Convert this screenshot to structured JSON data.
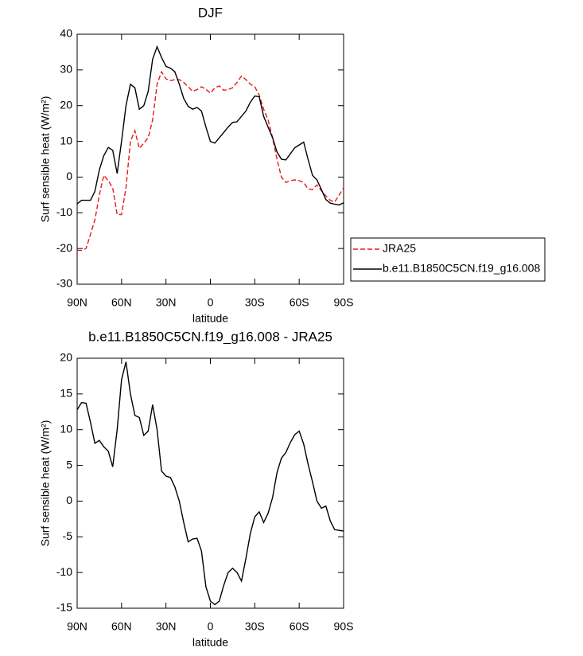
{
  "chart_data": [
    {
      "type": "line",
      "title": "DJF",
      "xlabel": "latitude",
      "ylabel": "Surf sensible heat (W/m²)",
      "x": [
        90,
        87,
        84,
        81,
        78,
        75,
        72,
        69,
        66,
        63,
        60,
        57,
        54,
        51,
        48,
        45,
        42,
        39,
        36,
        33,
        30,
        27,
        24,
        21,
        18,
        15,
        12,
        9,
        6,
        3,
        0,
        -3,
        -6,
        -9,
        -12,
        -15,
        -18,
        -21,
        -24,
        -27,
        -30,
        -33,
        -36,
        -39,
        -42,
        -45,
        -48,
        -51,
        -54,
        -57,
        -60,
        -63,
        -66,
        -69,
        -72,
        -75,
        -78,
        -81,
        -84,
        -87,
        -90
      ],
      "xlim": [
        90,
        -90
      ],
      "xticks": [
        {
          "value": 90,
          "label": "90N"
        },
        {
          "value": 60,
          "label": "60N"
        },
        {
          "value": 30,
          "label": "30N"
        },
        0,
        {
          "value": -30,
          "label": "30S"
        },
        {
          "value": -60,
          "label": "60S"
        },
        {
          "value": -90,
          "label": "90S"
        }
      ],
      "ylim": [
        -30,
        40
      ],
      "yticks": [
        -30,
        -20,
        -10,
        0,
        10,
        20,
        30,
        40
      ],
      "legend_position": "right",
      "series": [
        {
          "name": "JRA25",
          "color": "#e41a1c",
          "dashed": true,
          "values": [
            -20.5,
            -20.5,
            -20,
            -16,
            -12,
            -5,
            0.5,
            -1,
            -3,
            -10.5,
            -10.5,
            -3,
            10,
            13,
            8,
            9.5,
            11,
            16,
            26,
            29.5,
            27.5,
            27,
            27.3,
            27.3,
            26.5,
            25.3,
            24,
            24.5,
            25.3,
            24.6,
            23.5,
            25,
            25.5,
            24.3,
            24.5,
            25,
            26.5,
            28.3,
            27.3,
            26,
            25.3,
            23,
            19,
            16,
            11,
            5,
            0,
            -1.5,
            -1,
            -0.8,
            -1,
            -1.5,
            -3.3,
            -3.5,
            -2.2,
            -3.8,
            -5.3,
            -6.5,
            -7,
            -5,
            -3
          ]
        },
        {
          "name": "b.e11.B1850C5CN.f19_g16.008",
          "color": "#000000",
          "dashed": false,
          "values": [
            -7.5,
            -6.5,
            -6.5,
            -6.5,
            -4,
            2,
            6,
            8.3,
            7.5,
            1,
            10,
            20,
            26,
            25,
            19,
            20,
            24,
            33,
            36.5,
            33.5,
            31,
            30.5,
            29.5,
            26,
            22,
            19.8,
            19,
            19.5,
            18.5,
            14,
            10,
            9.5,
            11,
            12.5,
            14,
            15.3,
            15.5,
            17,
            18.5,
            21,
            22.7,
            22.5,
            17,
            14,
            11,
            7,
            5,
            4.8,
            6.5,
            8.2,
            9,
            9.8,
            5,
            0.5,
            -0.8,
            -3.5,
            -6.3,
            -7.3,
            -7.6,
            -7.8,
            -7.2
          ]
        }
      ]
    },
    {
      "type": "line",
      "title": "b.e11.B1850C5CN.f19_g16.008 - JRA25",
      "xlabel": "latitude",
      "ylabel": "Surf sensible heat (W/m²)",
      "x": [
        90,
        87,
        84,
        81,
        78,
        75,
        72,
        69,
        66,
        63,
        60,
        57,
        54,
        51,
        48,
        45,
        42,
        39,
        36,
        33,
        30,
        27,
        24,
        21,
        18,
        15,
        12,
        9,
        6,
        3,
        0,
        -3,
        -6,
        -9,
        -12,
        -15,
        -18,
        -21,
        -24,
        -27,
        -30,
        -33,
        -36,
        -39,
        -42,
        -45,
        -48,
        -51,
        -54,
        -57,
        -60,
        -63,
        -66,
        -69,
        -72,
        -75,
        -78,
        -81,
        -84,
        -87,
        -90
      ],
      "xlim": [
        90,
        -90
      ],
      "xticks": [
        {
          "value": 90,
          "label": "90N"
        },
        {
          "value": 60,
          "label": "60N"
        },
        {
          "value": 30,
          "label": "30N"
        },
        0,
        {
          "value": -30,
          "label": "30S"
        },
        {
          "value": -60,
          "label": "60S"
        },
        {
          "value": -90,
          "label": "90S"
        }
      ],
      "ylim": [
        -15,
        20
      ],
      "yticks": [
        -15,
        -10,
        -5,
        0,
        5,
        10,
        15,
        20
      ],
      "color": "#000000",
      "values": [
        12.8,
        13.8,
        13.7,
        11,
        8.1,
        8.5,
        7.6,
        7,
        4.8,
        10,
        17,
        19.5,
        15,
        12,
        11.7,
        9.2,
        9.8,
        13.5,
        10,
        4.2,
        3.5,
        3.3,
        2,
        0,
        -3,
        -5.7,
        -5.3,
        -5.2,
        -7,
        -12,
        -14,
        -14.5,
        -14,
        -11.8,
        -10,
        -9.4,
        -10,
        -11.2,
        -8,
        -4.5,
        -2.2,
        -1.5,
        -3,
        -1.7,
        0.5,
        4,
        6,
        6.8,
        8.2,
        9.3,
        9.8,
        8,
        5.2,
        2.7,
        0,
        -1,
        -0.7,
        -2.8,
        -4,
        -4.1,
        -4.2
      ]
    }
  ]
}
